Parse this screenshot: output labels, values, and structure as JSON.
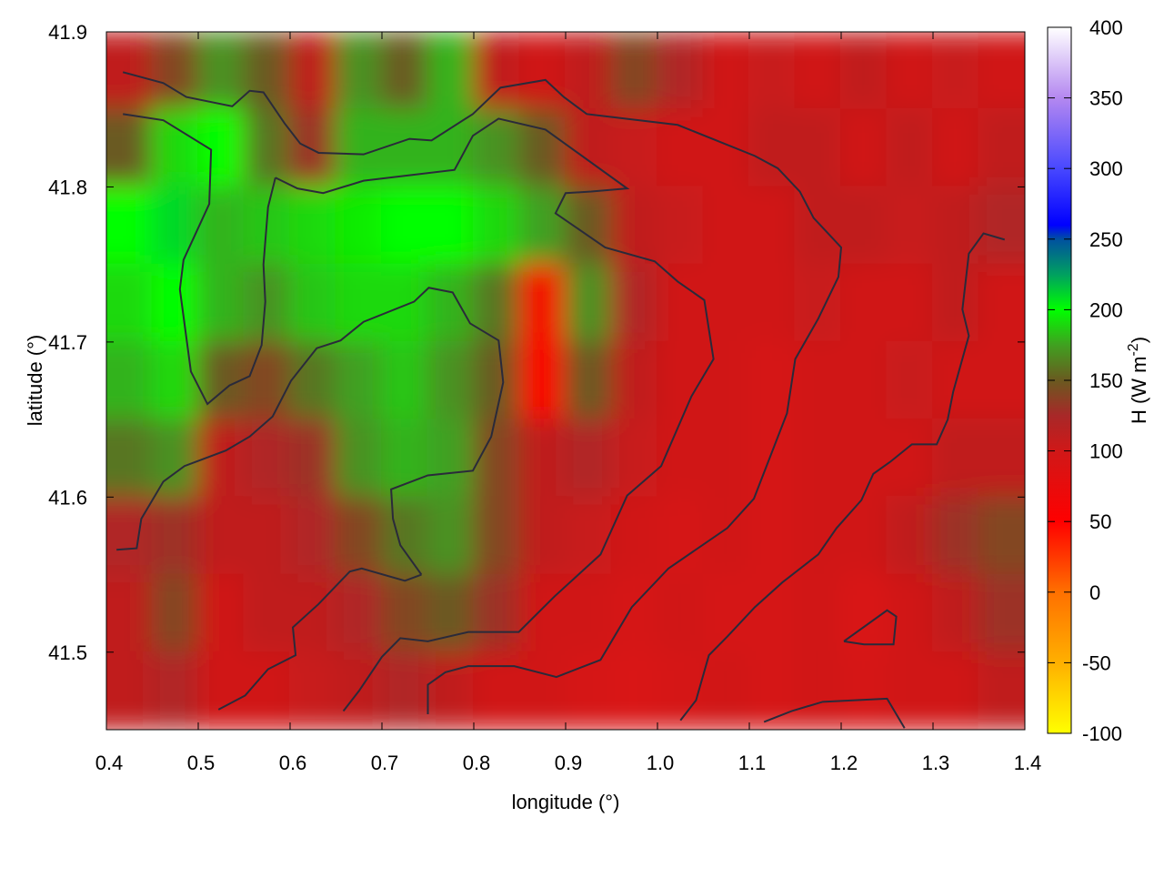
{
  "chart_data": {
    "type": "heatmap",
    "title": "",
    "xlabel": "longitude (°)",
    "ylabel": "latitude (°)",
    "xlim": [
      0.4,
      1.4
    ],
    "ylim": [
      41.45,
      41.9
    ],
    "xticks": [
      "0.4",
      "0.5",
      "0.6",
      "0.7",
      "0.8",
      "0.9",
      "1.0",
      "1.1",
      "1.2",
      "1.3",
      "1.4"
    ],
    "yticks": [
      "41.5",
      "41.6",
      "41.7",
      "41.8",
      "41.9"
    ],
    "colorbar": {
      "label_main": "H (W m",
      "label_sup": "-2",
      "label_end": ")",
      "range": [
        -100,
        400
      ],
      "ticks": [
        "400",
        "350",
        "300",
        "250",
        "200",
        "150",
        "100",
        "50",
        "0",
        "-50",
        "-100"
      ],
      "stops": [
        {
          "v": -100,
          "c": "#ffff00"
        },
        {
          "v": -50,
          "c": "#ffb000"
        },
        {
          "v": 0,
          "c": "#ff7000"
        },
        {
          "v": 50,
          "c": "#ff0000"
        },
        {
          "v": 100,
          "c": "#d01818"
        },
        {
          "v": 125,
          "c": "#a82828"
        },
        {
          "v": 150,
          "c": "#6a5a20"
        },
        {
          "v": 175,
          "c": "#40a020"
        },
        {
          "v": 200,
          "c": "#00ff00"
        },
        {
          "v": 225,
          "c": "#00a060"
        },
        {
          "v": 250,
          "c": "#0050a0"
        },
        {
          "v": 260,
          "c": "#0000ff"
        },
        {
          "v": 300,
          "c": "#4848ff"
        },
        {
          "v": 350,
          "c": "#b488f0"
        },
        {
          "v": 400,
          "c": "#ffffff"
        }
      ]
    },
    "grid": {
      "lon_centers": [
        0.425,
        0.475,
        0.525,
        0.575,
        0.625,
        0.675,
        0.725,
        0.775,
        0.825,
        0.875,
        0.925,
        0.975,
        1.025,
        1.075,
        1.125,
        1.175,
        1.225,
        1.275,
        1.325,
        1.375
      ],
      "lat_centers": [
        41.875,
        41.825,
        41.775,
        41.725,
        41.675,
        41.625,
        41.575,
        41.525,
        41.475
      ],
      "values": [
        [
          110,
          140,
          170,
          150,
          110,
          170,
          150,
          180,
          110,
          100,
          110,
          140,
          120,
          100,
          105,
          100,
          110,
          100,
          105,
          100
        ],
        [
          150,
          190,
          200,
          160,
          130,
          180,
          180,
          180,
          170,
          150,
          110,
          105,
          100,
          100,
          110,
          110,
          100,
          110,
          100,
          110
        ],
        [
          200,
          210,
          180,
          185,
          190,
          195,
          200,
          200,
          190,
          175,
          150,
          110,
          105,
          100,
          100,
          110,
          110,
          105,
          110,
          120
        ],
        [
          190,
          200,
          180,
          170,
          185,
          190,
          190,
          180,
          160,
          60,
          170,
          120,
          100,
          100,
          100,
          105,
          100,
          100,
          110,
          100
        ],
        [
          180,
          190,
          150,
          140,
          160,
          175,
          185,
          170,
          150,
          55,
          150,
          110,
          100,
          100,
          95,
          100,
          100,
          105,
          100,
          100
        ],
        [
          160,
          170,
          110,
          120,
          130,
          170,
          180,
          175,
          140,
          110,
          120,
          105,
          100,
          100,
          95,
          100,
          100,
          100,
          110,
          110
        ],
        [
          120,
          130,
          110,
          110,
          120,
          140,
          160,
          170,
          140,
          110,
          105,
          100,
          95,
          100,
          95,
          100,
          100,
          110,
          130,
          140
        ],
        [
          110,
          140,
          100,
          110,
          110,
          120,
          140,
          150,
          130,
          100,
          100,
          95,
          100,
          95,
          95,
          100,
          90,
          100,
          110,
          130
        ],
        [
          110,
          120,
          100,
          100,
          105,
          110,
          120,
          110,
          100,
          100,
          95,
          90,
          95,
          100,
          95,
          100,
          95,
          100,
          100,
          110
        ]
      ]
    },
    "contour_color": "#2a2a3a",
    "contours": [
      [
        [
          0.584,
          41.806
        ],
        [
          0.608,
          41.799
        ],
        [
          0.636,
          41.796
        ],
        [
          0.68,
          41.804
        ],
        [
          0.779,
          41.811
        ],
        [
          0.799,
          41.833
        ],
        [
          0.827,
          41.844
        ],
        [
          0.878,
          41.837
        ],
        [
          0.967,
          41.799
        ],
        [
          0.928,
          41.797
        ],
        [
          0.9,
          41.796
        ],
        [
          0.889,
          41.783
        ],
        [
          0.943,
          41.761
        ],
        [
          0.997,
          41.752
        ],
        [
          1.022,
          41.739
        ],
        [
          1.051,
          41.727
        ],
        [
          1.061,
          41.689
        ],
        [
          1.037,
          41.665
        ],
        [
          1.004,
          41.62
        ],
        [
          0.967,
          41.601
        ],
        [
          0.938,
          41.563
        ],
        [
          0.888,
          41.536
        ],
        [
          0.849,
          41.513
        ],
        [
          0.794,
          41.513
        ],
        [
          0.75,
          41.507
        ],
        [
          0.72,
          41.509
        ],
        [
          0.7,
          41.497
        ],
        [
          0.675,
          41.475
        ],
        [
          0.658,
          41.462
        ]
      ],
      [
        [
          0.418,
          41.847
        ],
        [
          0.462,
          41.843
        ],
        [
          0.514,
          41.824
        ],
        [
          0.512,
          41.789
        ],
        [
          0.484,
          41.753
        ],
        [
          0.48,
          41.734
        ],
        [
          0.492,
          41.681
        ],
        [
          0.51,
          41.66
        ],
        [
          0.534,
          41.672
        ],
        [
          0.556,
          41.678
        ],
        [
          0.569,
          41.698
        ],
        [
          0.573,
          41.726
        ],
        [
          0.571,
          41.75
        ],
        [
          0.576,
          41.787
        ],
        [
          0.584,
          41.806
        ]
      ],
      [
        [
          0.743,
          41.55
        ],
        [
          0.72,
          41.569
        ],
        [
          0.712,
          41.586
        ],
        [
          0.71,
          41.605
        ],
        [
          0.75,
          41.614
        ],
        [
          0.799,
          41.617
        ],
        [
          0.819,
          41.639
        ],
        [
          0.832,
          41.674
        ],
        [
          0.827,
          41.701
        ],
        [
          0.796,
          41.712
        ],
        [
          0.777,
          41.732
        ],
        [
          0.751,
          41.735
        ],
        [
          0.735,
          41.726
        ],
        [
          0.68,
          41.713
        ],
        [
          0.655,
          41.701
        ],
        [
          0.629,
          41.696
        ],
        [
          0.601,
          41.675
        ],
        [
          0.581,
          41.652
        ],
        [
          0.556,
          41.639
        ],
        [
          0.53,
          41.63
        ],
        [
          0.485,
          41.62
        ],
        [
          0.462,
          41.61
        ],
        [
          0.438,
          41.586
        ],
        [
          0.433,
          41.567
        ],
        [
          0.411,
          41.566
        ]
      ],
      [
        [
          1.378,
          41.766
        ],
        [
          1.355,
          41.77
        ],
        [
          1.339,
          41.757
        ],
        [
          1.332,
          41.721
        ],
        [
          1.339,
          41.704
        ],
        [
          1.322,
          41.668
        ],
        [
          1.316,
          41.65
        ],
        [
          1.304,
          41.634
        ],
        [
          1.277,
          41.634
        ],
        [
          1.254,
          41.623
        ],
        [
          1.235,
          41.615
        ],
        [
          1.222,
          41.598
        ],
        [
          1.195,
          41.58
        ],
        [
          1.175,
          41.563
        ],
        [
          1.136,
          41.545
        ],
        [
          1.106,
          41.529
        ],
        [
          1.076,
          41.51
        ],
        [
          1.056,
          41.498
        ],
        [
          1.042,
          41.469
        ],
        [
          1.025,
          41.456
        ]
      ],
      [
        [
          0.75,
          41.46
        ],
        [
          0.75,
          41.479
        ],
        [
          0.769,
          41.487
        ],
        [
          0.794,
          41.491
        ],
        [
          0.844,
          41.491
        ],
        [
          0.89,
          41.484
        ],
        [
          0.938,
          41.495
        ],
        [
          0.972,
          41.529
        ],
        [
          1.012,
          41.554
        ],
        [
          1.076,
          41.58
        ],
        [
          1.105,
          41.599
        ],
        [
          1.141,
          41.654
        ],
        [
          1.15,
          41.689
        ],
        [
          1.175,
          41.715
        ],
        [
          1.197,
          41.742
        ],
        [
          1.2,
          41.761
        ],
        [
          1.17,
          41.78
        ],
        [
          1.155,
          41.797
        ],
        [
          1.131,
          41.812
        ],
        [
          1.106,
          41.82
        ],
        [
          1.022,
          41.84
        ],
        [
          0.923,
          41.847
        ],
        [
          0.898,
          41.858
        ],
        [
          0.878,
          41.869
        ],
        [
          0.829,
          41.864
        ],
        [
          0.799,
          41.847
        ],
        [
          0.754,
          41.83
        ],
        [
          0.73,
          41.831
        ],
        [
          0.68,
          41.821
        ],
        [
          0.631,
          41.822
        ],
        [
          0.611,
          41.828
        ],
        [
          0.594,
          41.841
        ],
        [
          0.571,
          41.861
        ],
        [
          0.556,
          41.862
        ],
        [
          0.537,
          41.852
        ],
        [
          0.487,
          41.858
        ],
        [
          0.462,
          41.867
        ],
        [
          0.418,
          41.874
        ]
      ],
      [
        [
          0.522,
          41.463
        ],
        [
          0.551,
          41.472
        ],
        [
          0.576,
          41.489
        ],
        [
          0.606,
          41.498
        ],
        [
          0.603,
          41.516
        ],
        [
          0.631,
          41.531
        ],
        [
          0.665,
          41.552
        ],
        [
          0.678,
          41.554
        ],
        [
          0.725,
          41.546
        ],
        [
          0.743,
          41.55
        ]
      ],
      [
        [
          1.116,
          41.455
        ],
        [
          1.146,
          41.462
        ],
        [
          1.18,
          41.468
        ],
        [
          1.25,
          41.47
        ],
        [
          1.269,
          41.451
        ]
      ],
      [
        [
          1.203,
          41.507
        ],
        [
          1.25,
          41.527
        ],
        [
          1.26,
          41.523
        ],
        [
          1.257,
          41.505
        ],
        [
          1.225,
          41.505
        ],
        [
          1.203,
          41.507
        ]
      ]
    ]
  }
}
